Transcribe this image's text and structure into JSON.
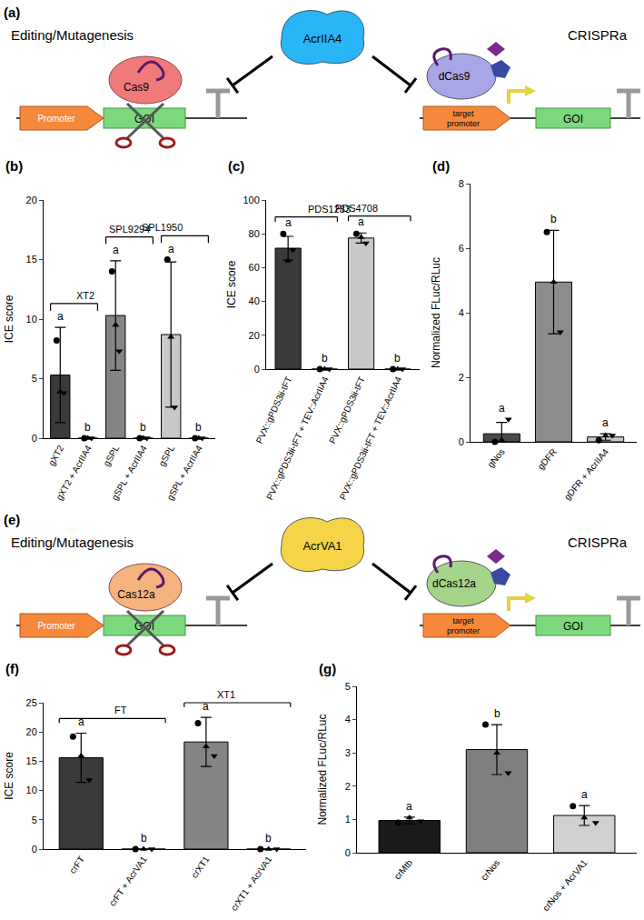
{
  "diagrams": [
    {
      "panel": "(a)",
      "left_title": "Editing/Mutagenesis",
      "right_title": "CRISPRa",
      "inhibitor": "AcrIIA4",
      "nuclease": "Cas9",
      "dead_nuclease": "dCas9",
      "promoter": "Promoter",
      "target_promoter": "target promoter",
      "gene": "GOI"
    },
    {
      "panel": "(e)",
      "left_title": "Editing/Mutagenesis",
      "right_title": "CRISPRa",
      "inhibitor": "AcrVA1",
      "nuclease": "Cas12a",
      "dead_nuclease": "dCas12a",
      "promoter": "Promoter",
      "target_promoter": "target promoter",
      "gene": "GOI"
    }
  ],
  "chart_data": [
    {
      "panel": "(b)",
      "type": "bar",
      "y_label": "ICE score",
      "categories": [
        "gXT2",
        "gXT2 + AcrIIA4",
        "gSPL",
        "gSPL + AcrIIA4",
        "gSPL",
        "gSPL + AcrIIA4"
      ],
      "values": [
        5.3,
        0,
        10.3,
        0,
        8.7,
        0
      ],
      "errors": [
        4.0,
        0,
        4.6,
        0,
        6.1,
        0
      ],
      "points": [
        [
          8.2,
          3.9,
          3.8
        ],
        [
          0,
          0,
          0
        ],
        [
          14.0,
          9.5,
          7.3
        ],
        [
          0,
          0,
          0
        ],
        [
          15.0,
          8.5,
          2.6
        ],
        [
          0,
          0,
          0
        ]
      ],
      "letters": [
        "a",
        "b",
        "a",
        "b",
        "a",
        "b"
      ],
      "groups": [
        {
          "label": "XT2",
          "members": [
            0,
            1
          ]
        },
        {
          "label": "SPL9294",
          "members": [
            2,
            3
          ]
        },
        {
          "label": "SPL1950",
          "members": [
            4,
            5
          ]
        }
      ],
      "colors": [
        "#3a3a3a",
        "#3a3a3a",
        "#858585",
        "#858585",
        "#c8c8c8",
        "#c8c8c8"
      ],
      "ylim": [
        0,
        20
      ],
      "yticks": [
        0,
        5,
        10,
        15,
        20
      ]
    },
    {
      "panel": "(c)",
      "type": "bar",
      "y_label": "ICE score",
      "categories": [
        "PVX::gPDS3ii-tFT",
        "PVX::gPDS3ii-tFT + TEV::AcrIIA4",
        "PVX::gPDS3ii-tFT",
        "PVX::gPDS3ii-tFT + TEV::AcrIIA4"
      ],
      "values": [
        71.5,
        0,
        77.5,
        0
      ],
      "errors": [
        7.0,
        0,
        3.0,
        0
      ],
      "points": [
        [
          80,
          64,
          70.5
        ],
        [
          0,
          0,
          0
        ],
        [
          80,
          78,
          74.5
        ],
        [
          0,
          0,
          0
        ]
      ],
      "letters": [
        "a",
        "b",
        "a",
        "b"
      ],
      "groups": [
        {
          "label": "PDS1283",
          "members": [
            0,
            1
          ]
        },
        {
          "label": "PDS4708",
          "members": [
            2,
            3
          ]
        }
      ],
      "colors": [
        "#3a3a3a",
        "#3a3a3a",
        "#c8c8c8",
        "#c8c8c8"
      ],
      "ylim": [
        0,
        100
      ],
      "yticks": [
        0,
        20,
        40,
        60,
        80,
        100
      ]
    },
    {
      "panel": "(d)",
      "type": "bar",
      "y_label": "Normalized FLuc/RLuc",
      "categories": [
        "gNos",
        "gDFR",
        "gDFR + AcrIIA4"
      ],
      "values": [
        0.25,
        4.95,
        0.15
      ],
      "errors": [
        0.35,
        1.6,
        0.1
      ],
      "points": [
        [
          0.0,
          0.05,
          0.7
        ],
        [
          6.5,
          4.95,
          3.4
        ],
        [
          0.05,
          0.2,
          0.2
        ]
      ],
      "letters": [
        "a",
        "b",
        "a"
      ],
      "colors": [
        "#4a4a4a",
        "#8c8c8c",
        "#c8c8c8"
      ],
      "ylim": [
        0,
        8
      ],
      "yticks": [
        0,
        2,
        4,
        6,
        8
      ]
    },
    {
      "panel": "(f)",
      "type": "bar",
      "y_label": "ICE score",
      "categories": [
        "crFT",
        "crFT + AcrVA1",
        "crXT1",
        "crXT1 + AcrVA1"
      ],
      "values": [
        15.6,
        0,
        18.3,
        0
      ],
      "errors": [
        4.2,
        0,
        4.2,
        0
      ],
      "points": [
        [
          19.2,
          15.9,
          11.8
        ],
        [
          0,
          0,
          0
        ],
        [
          21.5,
          17.5,
          15.9
        ],
        [
          0,
          0,
          0
        ]
      ],
      "letters": [
        "a",
        "b",
        "a",
        "b"
      ],
      "groups": [
        {
          "label": "FT",
          "members": [
            0,
            1
          ]
        },
        {
          "label": "XT1",
          "members": [
            2,
            3
          ]
        }
      ],
      "colors": [
        "#3a3a3a",
        "#3a3a3a",
        "#858585",
        "#858585"
      ],
      "ylim": [
        0,
        25
      ],
      "yticks": [
        0,
        5,
        10,
        15,
        20,
        25
      ]
    },
    {
      "panel": "(g)",
      "type": "bar",
      "y_label": "Normalized FLuc/RLuc",
      "categories": [
        "crMtb",
        "crNos",
        "crNos + AcrVA1"
      ],
      "values": [
        0.97,
        3.1,
        1.12
      ],
      "errors": [
        0.1,
        0.75,
        0.3
      ],
      "points": [
        [
          0.9,
          1.05,
          0.95
        ],
        [
          3.85,
          3.0,
          2.4
        ],
        [
          1.4,
          1.05,
          0.9
        ]
      ],
      "letters": [
        "a",
        "b",
        "a"
      ],
      "colors": [
        "#1a1a1a",
        "#7f7f7f",
        "#d0d0d0"
      ],
      "ylim": [
        0,
        5
      ],
      "yticks": [
        0,
        1,
        2,
        3,
        4,
        5
      ]
    }
  ]
}
